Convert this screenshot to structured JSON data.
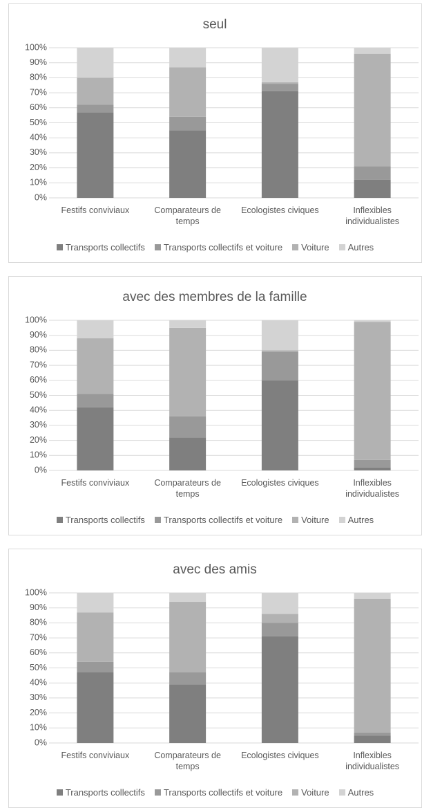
{
  "chart_data": [
    {
      "type": "bar",
      "stacked": true,
      "title": "seul",
      "categories": [
        "Festifs conviviaux",
        "Comparateurs de temps",
        "Ecologistes civiques",
        "Inflexibles individualistes"
      ],
      "series": [
        {
          "name": "Transports collectifs",
          "color": "#7f7f7f",
          "values": [
            57,
            45,
            71,
            12
          ]
        },
        {
          "name": "Transports collectifs et voiture",
          "color": "#999999",
          "values": [
            5,
            9,
            5,
            9
          ]
        },
        {
          "name": "Voiture",
          "color": "#b2b2b2",
          "values": [
            18,
            33,
            1,
            75
          ]
        },
        {
          "name": "Autres",
          "color": "#d3d3d3",
          "values": [
            20,
            13,
            23,
            4
          ]
        }
      ],
      "ylim": [
        0,
        100
      ],
      "yticks": [
        {
          "value": 0,
          "label": "0%"
        },
        {
          "value": 10,
          "label": "10%"
        },
        {
          "value": 20,
          "label": "20%"
        },
        {
          "value": 30,
          "label": "30%"
        },
        {
          "value": 40,
          "label": "40%"
        },
        {
          "value": 50,
          "label": "50%"
        },
        {
          "value": 60,
          "label": "60%"
        },
        {
          "value": 70,
          "label": "70%"
        },
        {
          "value": 80,
          "label": "80%"
        },
        {
          "value": 90,
          "label": "90%"
        },
        {
          "value": 100,
          "label": "100%"
        }
      ],
      "grid": true,
      "legend": "bottom"
    },
    {
      "type": "bar",
      "stacked": true,
      "title": "avec des membres de la famille",
      "categories": [
        "Festifs conviviaux",
        "Comparateurs de temps",
        "Ecologistes civiques",
        "Inflexibles individualistes"
      ],
      "series": [
        {
          "name": "Transports collectifs",
          "color": "#7f7f7f",
          "values": [
            42,
            22,
            60,
            2
          ]
        },
        {
          "name": "Transports collectifs et voiture",
          "color": "#999999",
          "values": [
            9,
            14,
            19,
            5
          ]
        },
        {
          "name": "Voiture",
          "color": "#b2b2b2",
          "values": [
            37,
            59,
            1,
            92
          ]
        },
        {
          "name": "Autres",
          "color": "#d3d3d3",
          "values": [
            12,
            5,
            20,
            1
          ]
        }
      ],
      "ylim": [
        0,
        100
      ],
      "yticks": [
        {
          "value": 0,
          "label": "0%"
        },
        {
          "value": 10,
          "label": "10%"
        },
        {
          "value": 20,
          "label": "20%"
        },
        {
          "value": 30,
          "label": "30%"
        },
        {
          "value": 40,
          "label": "40%"
        },
        {
          "value": 50,
          "label": "50%"
        },
        {
          "value": 60,
          "label": "60%"
        },
        {
          "value": 70,
          "label": "70%"
        },
        {
          "value": 80,
          "label": "80%"
        },
        {
          "value": 90,
          "label": "90%"
        },
        {
          "value": 100,
          "label": "100%"
        }
      ],
      "grid": true,
      "legend": "bottom"
    },
    {
      "type": "bar",
      "stacked": true,
      "title": "avec des amis",
      "categories": [
        "Festifs conviviaux",
        "Comparateurs de temps",
        "Ecologistes civiques",
        "Inflexibles individualistes"
      ],
      "series": [
        {
          "name": "Transports collectifs",
          "color": "#7f7f7f",
          "values": [
            47,
            39,
            71,
            5
          ]
        },
        {
          "name": "Transports collectifs et voiture",
          "color": "#999999",
          "values": [
            7,
            8,
            9,
            2
          ]
        },
        {
          "name": "Voiture",
          "color": "#b2b2b2",
          "values": [
            33,
            47,
            6,
            89
          ]
        },
        {
          "name": "Autres",
          "color": "#d3d3d3",
          "values": [
            13,
            6,
            14,
            4
          ]
        }
      ],
      "ylim": [
        0,
        100
      ],
      "yticks": [
        {
          "value": 0,
          "label": "0%"
        },
        {
          "value": 10,
          "label": "10%"
        },
        {
          "value": 20,
          "label": "20%"
        },
        {
          "value": 30,
          "label": "30%"
        },
        {
          "value": 40,
          "label": "40%"
        },
        {
          "value": 50,
          "label": "50%"
        },
        {
          "value": 60,
          "label": "60%"
        },
        {
          "value": 70,
          "label": "70%"
        },
        {
          "value": 80,
          "label": "80%"
        },
        {
          "value": 90,
          "label": "90%"
        },
        {
          "value": 100,
          "label": "100%"
        }
      ],
      "grid": true,
      "legend": "bottom"
    }
  ]
}
